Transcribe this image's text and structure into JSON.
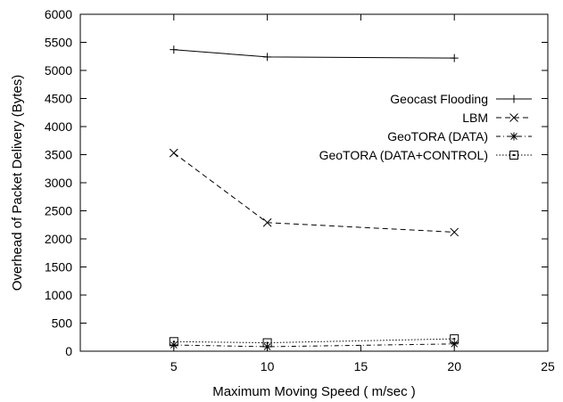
{
  "chart_data": {
    "type": "line",
    "title": "",
    "xlabel": "Maximum Moving Speed ( m/sec )",
    "ylabel": "Overhead of Packet Delivery (Bytes)",
    "xlim": [
      0,
      25
    ],
    "ylim": [
      0,
      6000
    ],
    "xticks": [
      5,
      10,
      15,
      20,
      25
    ],
    "yticks": [
      0,
      500,
      1000,
      1500,
      2000,
      2500,
      3000,
      3500,
      4000,
      4500,
      5000,
      5500,
      6000
    ],
    "grid": false,
    "legend_position": "top-right",
    "x": [
      5,
      10,
      20
    ],
    "series": [
      {
        "name": "Geocast Flooding",
        "values": [
          5370,
          5240,
          5220
        ],
        "marker": "plus",
        "dash": "solid"
      },
      {
        "name": "LBM",
        "values": [
          3530,
          2290,
          2120
        ],
        "marker": "cross",
        "dash": "dashed"
      },
      {
        "name": "GeoTORA (DATA)",
        "values": [
          110,
          80,
          130
        ],
        "marker": "star",
        "dash": "dash-dot"
      },
      {
        "name": "GeoTORA (DATA+CONTROL)",
        "values": [
          170,
          150,
          220
        ],
        "marker": "square",
        "dash": "dotted"
      }
    ]
  }
}
